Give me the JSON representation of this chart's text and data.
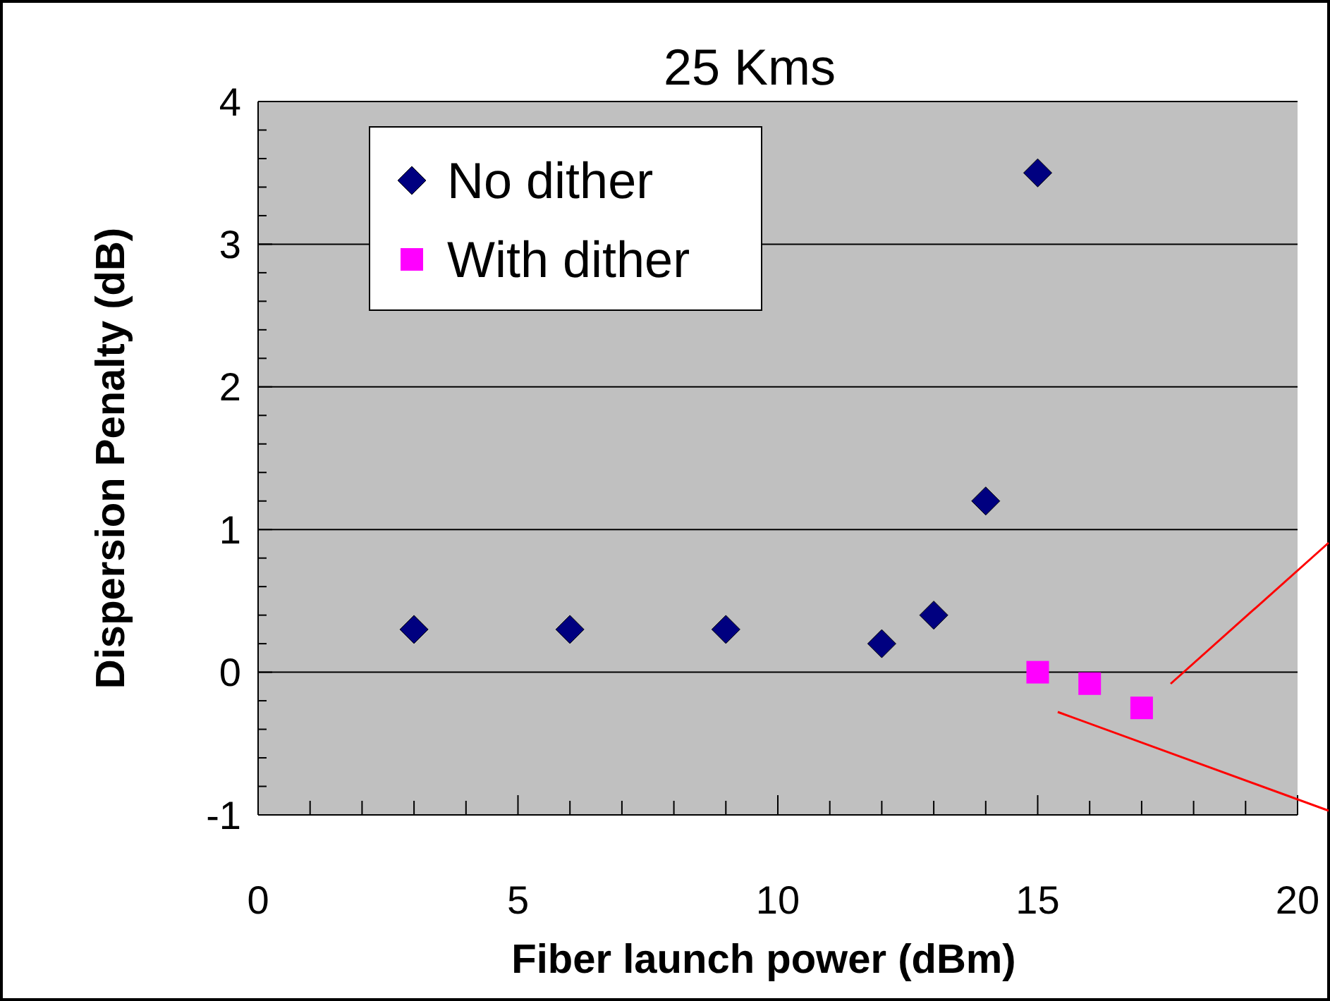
{
  "chart_data": {
    "type": "scatter",
    "title": "25 Kms",
    "xlabel": "Fiber launch power (dBm)",
    "ylabel": "Dispersion Penalty (dB)",
    "xlim": [
      0,
      20
    ],
    "ylim": [
      -1,
      4
    ],
    "xticks": [
      0,
      {
        "value": 1,
        "label": null
      },
      {
        "value": 2,
        "label": null
      },
      {
        "value": 3,
        "label": null
      },
      {
        "value": 4,
        "label": null
      },
      5,
      {
        "value": 6,
        "label": null
      },
      {
        "value": 7,
        "label": null
      },
      {
        "value": 8,
        "label": null
      },
      {
        "value": 9,
        "label": null
      },
      10,
      {
        "value": 11,
        "label": null
      },
      {
        "value": 12,
        "label": null
      },
      {
        "value": 13,
        "label": null
      },
      {
        "value": 14,
        "label": null
      },
      15,
      {
        "value": 16,
        "label": null
      },
      {
        "value": 17,
        "label": null
      },
      {
        "value": 18,
        "label": null
      },
      {
        "value": 19,
        "label": null
      },
      20
    ],
    "yticks": [
      -1,
      {
        "value": -0.8,
        "label": null
      },
      {
        "value": -0.6,
        "label": null
      },
      {
        "value": -0.4,
        "label": null
      },
      {
        "value": -0.2,
        "label": null
      },
      0,
      {
        "value": 0.2,
        "label": null
      },
      {
        "value": 0.4,
        "label": null
      },
      {
        "value": 0.6,
        "label": null
      },
      {
        "value": 0.8,
        "label": null
      },
      1,
      {
        "value": 1.2,
        "label": null
      },
      {
        "value": 1.4,
        "label": null
      },
      {
        "value": 1.6,
        "label": null
      },
      {
        "value": 1.8,
        "label": null
      },
      2,
      {
        "value": 2.2,
        "label": null
      },
      {
        "value": 2.4,
        "label": null
      },
      {
        "value": 2.6,
        "label": null
      },
      {
        "value": 2.8,
        "label": null
      },
      3,
      {
        "value": 3.2,
        "label": null
      },
      {
        "value": 3.4,
        "label": null
      },
      {
        "value": 3.6,
        "label": null
      },
      {
        "value": 3.8,
        "label": null
      },
      4
    ],
    "grid": "y",
    "legend": "top left",
    "series": [
      {
        "name": "No dither",
        "color": "#000080",
        "marker": "diamond",
        "x": [
          3,
          6,
          9,
          12,
          13,
          14,
          15
        ],
        "values": [
          0.3,
          0.3,
          0.3,
          0.2,
          0.4,
          1.2,
          3.5
        ]
      },
      {
        "name": "With dither",
        "color": "#ff00ff",
        "marker": "square",
        "x": [
          15,
          16,
          17
        ],
        "values": [
          0,
          -0.08,
          -0.25
        ]
      }
    ]
  }
}
